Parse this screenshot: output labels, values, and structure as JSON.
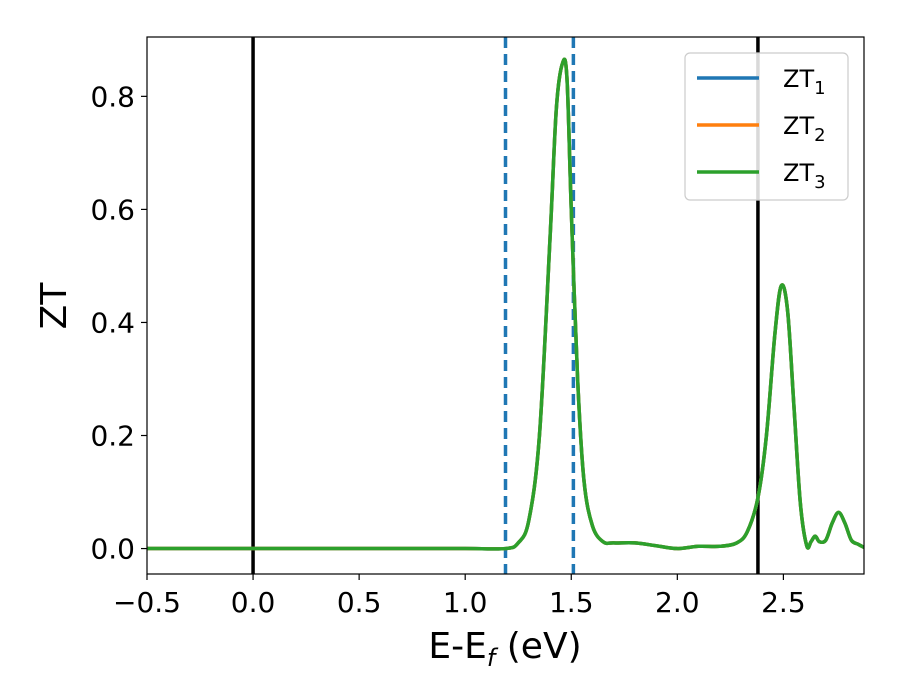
{
  "chart_data": {
    "type": "line",
    "xlabel": {
      "main": "E-E",
      "sub": "f",
      "rest": " (eV)"
    },
    "ylabel": "ZT",
    "xlim": [
      -0.5,
      2.88
    ],
    "ylim": [
      -0.045,
      0.905
    ],
    "xticks": [
      {
        "value": -0.5,
        "label": "−0.5"
      },
      {
        "value": 0.0,
        "label": "0.0"
      },
      {
        "value": 0.5,
        "label": "0.5"
      },
      {
        "value": 1.0,
        "label": "1.0"
      },
      {
        "value": 1.5,
        "label": "1.5"
      },
      {
        "value": 2.0,
        "label": "2.0"
      },
      {
        "value": 2.5,
        "label": "2.5"
      }
    ],
    "yticks": [
      {
        "value": 0.0,
        "label": "0.0"
      },
      {
        "value": 0.2,
        "label": "0.2"
      },
      {
        "value": 0.4,
        "label": "0.4"
      },
      {
        "value": 0.6,
        "label": "0.6"
      },
      {
        "value": 0.8,
        "label": "0.8"
      }
    ],
    "grid": false,
    "legend_position": "top-right",
    "vlines": [
      {
        "x": 0.0,
        "style": "solid",
        "color": "#000000"
      },
      {
        "x": 2.38,
        "style": "solid",
        "color": "#000000"
      },
      {
        "x": 1.19,
        "style": "dashed",
        "color": "#1f77b4"
      },
      {
        "x": 1.51,
        "style": "dashed",
        "color": "#1f77b4"
      }
    ],
    "series": [
      {
        "name": "ZT",
        "sub": "1",
        "color": "#1f77b4",
        "x": [
          -0.5,
          0.0,
          0.5,
          1.0,
          1.19,
          1.25,
          1.3,
          1.35,
          1.4,
          1.43,
          1.46,
          1.48,
          1.5,
          1.53,
          1.56,
          1.6,
          1.65,
          1.7,
          1.8,
          1.9,
          2.0,
          2.1,
          2.2,
          2.28,
          2.33,
          2.38,
          2.42,
          2.46,
          2.49,
          2.52,
          2.55,
          2.58,
          2.61,
          2.63,
          2.65,
          2.67,
          2.7,
          2.73,
          2.76,
          2.79,
          2.82,
          2.85,
          2.88
        ],
        "y": [
          0.0,
          0.0,
          0.0,
          0.0,
          0.0,
          0.01,
          0.05,
          0.2,
          0.55,
          0.78,
          0.86,
          0.83,
          0.6,
          0.3,
          0.12,
          0.04,
          0.012,
          0.01,
          0.01,
          0.005,
          0.0,
          0.004,
          0.004,
          0.01,
          0.03,
          0.09,
          0.2,
          0.38,
          0.465,
          0.42,
          0.25,
          0.08,
          0.005,
          0.012,
          0.022,
          0.012,
          0.015,
          0.045,
          0.064,
          0.045,
          0.015,
          0.008,
          0.002
        ]
      },
      {
        "name": "ZT",
        "sub": "2",
        "color": "#ff7f0e",
        "x": [
          -0.5,
          0.0,
          0.5,
          1.0,
          1.19,
          1.25,
          1.3,
          1.35,
          1.4,
          1.43,
          1.46,
          1.48,
          1.5,
          1.53,
          1.56,
          1.6,
          1.65,
          1.7,
          1.8,
          1.9,
          2.0,
          2.1,
          2.2,
          2.28,
          2.33,
          2.38,
          2.42,
          2.46,
          2.49,
          2.52,
          2.55,
          2.58,
          2.61,
          2.63,
          2.65,
          2.67,
          2.7,
          2.73,
          2.76,
          2.79,
          2.82,
          2.85,
          2.88
        ],
        "y": [
          0.0,
          0.0,
          0.0,
          0.0,
          0.0,
          0.01,
          0.05,
          0.2,
          0.55,
          0.78,
          0.86,
          0.83,
          0.6,
          0.3,
          0.12,
          0.04,
          0.012,
          0.01,
          0.01,
          0.005,
          0.0,
          0.004,
          0.004,
          0.01,
          0.03,
          0.09,
          0.2,
          0.38,
          0.465,
          0.42,
          0.25,
          0.08,
          0.005,
          0.012,
          0.022,
          0.012,
          0.015,
          0.045,
          0.064,
          0.045,
          0.015,
          0.008,
          0.002
        ]
      },
      {
        "name": "ZT",
        "sub": "3",
        "color": "#2ca02c",
        "x": [
          -0.5,
          0.0,
          0.5,
          1.0,
          1.19,
          1.25,
          1.3,
          1.35,
          1.4,
          1.43,
          1.46,
          1.48,
          1.5,
          1.53,
          1.56,
          1.6,
          1.65,
          1.7,
          1.8,
          1.9,
          2.0,
          2.1,
          2.2,
          2.28,
          2.33,
          2.38,
          2.42,
          2.46,
          2.49,
          2.52,
          2.55,
          2.58,
          2.61,
          2.63,
          2.65,
          2.67,
          2.7,
          2.73,
          2.76,
          2.79,
          2.82,
          2.85,
          2.88
        ],
        "y": [
          0.0,
          0.0,
          0.0,
          0.0,
          0.0,
          0.01,
          0.05,
          0.2,
          0.55,
          0.78,
          0.86,
          0.83,
          0.6,
          0.3,
          0.12,
          0.04,
          0.012,
          0.01,
          0.01,
          0.005,
          0.0,
          0.004,
          0.004,
          0.01,
          0.03,
          0.09,
          0.2,
          0.38,
          0.465,
          0.42,
          0.25,
          0.08,
          0.005,
          0.012,
          0.022,
          0.012,
          0.015,
          0.045,
          0.064,
          0.045,
          0.015,
          0.008,
          0.002
        ]
      }
    ]
  }
}
